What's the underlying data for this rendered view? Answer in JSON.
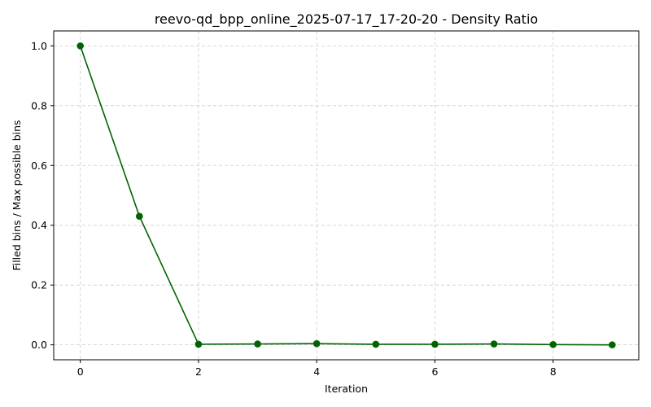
{
  "chart_data": {
    "type": "line",
    "title": "reevo-qd_bpp_online_2025-07-17_17-20-20 - Density Ratio",
    "xlabel": "Iteration",
    "ylabel": "Filled bins / Max possible bins",
    "x": [
      0,
      1,
      2,
      3,
      4,
      5,
      6,
      7,
      8,
      9
    ],
    "series": [
      {
        "values": [
          1.0,
          0.43,
          0.002,
          0.003,
          0.004,
          0.002,
          0.002,
          0.003,
          0.001,
          0.0
        ],
        "color": "#006400"
      }
    ],
    "xlim": [
      -0.45,
      9.45
    ],
    "ylim": [
      -0.05,
      1.05
    ],
    "xticks": [
      0,
      2,
      4,
      6,
      8
    ],
    "xtick_labels": [
      "0",
      "2",
      "4",
      "6",
      "8"
    ],
    "yticks": [
      0.0,
      0.2,
      0.4,
      0.6,
      0.8,
      1.0
    ],
    "ytick_labels": [
      "0.0",
      "0.2",
      "0.4",
      "0.6",
      "0.8",
      "1.0"
    ],
    "grid": true,
    "grid_color": "#cccccc",
    "marker": "circle",
    "legend": false
  }
}
